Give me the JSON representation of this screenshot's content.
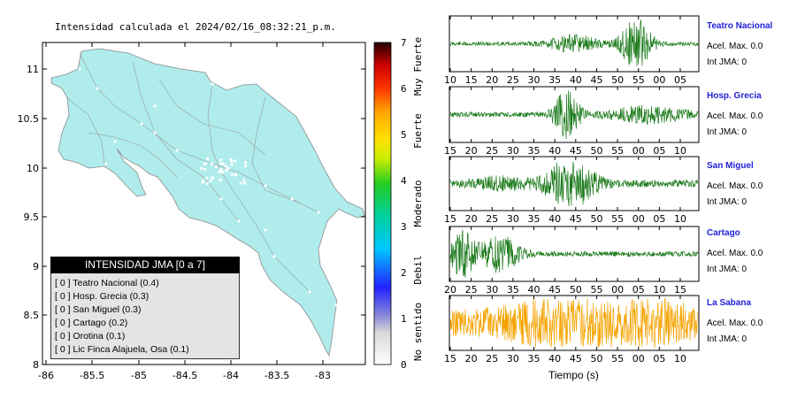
{
  "title": "Intensidad calculada el 2024/02/16_08:32:21_p.m.",
  "map": {
    "lat_ticks": [
      "11",
      "10.5",
      "10",
      "9.5",
      "9",
      "8.5",
      "8"
    ],
    "lon_ticks": [
      "-86",
      "-85.5",
      "-85",
      "-84.5",
      "-84",
      "-83.5",
      "-83"
    ]
  },
  "colorbar": {
    "values": [
      "7",
      "6",
      "5",
      "4",
      "3",
      "2",
      "1",
      "0"
    ],
    "categories": [
      "Muy Fuerte",
      "Fuerte",
      "Moderado",
      "Debil",
      "No sentido"
    ]
  },
  "legend": {
    "header": "INTENSIDAD JMA [0 a 7]",
    "items": [
      "[ 0 ]  Teatro Nacional (0.4)",
      "[ 0 ]  Hosp. Grecia (0.3)",
      "[ 0 ]  San Miguel (0.3)",
      "[ 0 ]  Cartago (0.2)",
      "[ 0 ]  Orotina (0.1)",
      "[ 0 ]  Lic Finca Alajuela, Osa (0.1)"
    ]
  },
  "stations": [
    {
      "name": "Teatro Nacional",
      "acel": "Acel. Max. 0.0",
      "int": "Int JMA: 0",
      "color": "#1a7a1a",
      "ticks": [
        "10",
        "15",
        "20",
        "25",
        "30",
        "35",
        "40",
        "45",
        "50",
        "55",
        "00",
        "05"
      ]
    },
    {
      "name": "Hosp. Grecia",
      "acel": "Acel. Max. 0.0",
      "int": "Int JMA: 0",
      "color": "#1a7a1a",
      "ticks": [
        "15",
        "20",
        "25",
        "30",
        "35",
        "40",
        "45",
        "50",
        "55",
        "00",
        "05",
        "10"
      ]
    },
    {
      "name": "San Miguel",
      "acel": "Acel. Max. 0.0",
      "int": "Int JMA: 0",
      "color": "#1a7a1a",
      "ticks": [
        "15",
        "20",
        "25",
        "30",
        "35",
        "40",
        "45",
        "50",
        "55",
        "00",
        "05",
        "10"
      ]
    },
    {
      "name": "Cartago",
      "acel": "Acel. Max. 0.0",
      "int": "Int JMA: 0",
      "color": "#1a7a1a",
      "ticks": [
        "20",
        "25",
        "30",
        "35",
        "40",
        "45",
        "50",
        "55",
        "00",
        "05",
        "10",
        "15"
      ]
    },
    {
      "name": "La Sabana",
      "acel": "Acel. Max. 0.0",
      "int": "Int JMA: 0",
      "color": "#f5a300",
      "ticks": [
        "15",
        "20",
        "25",
        "30",
        "35",
        "40",
        "45",
        "50",
        "55",
        "00",
        "05",
        "10"
      ]
    }
  ],
  "xlabel": "Tiempo (s)"
}
